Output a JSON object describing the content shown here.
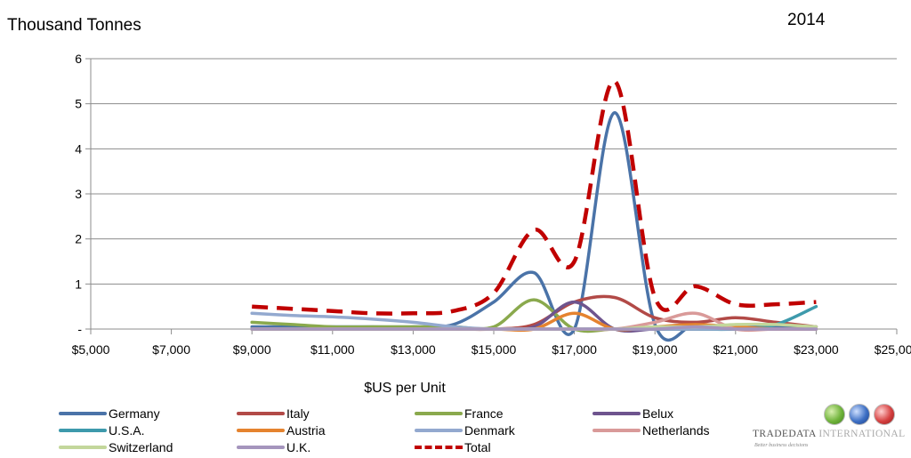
{
  "chart_data": {
    "type": "line",
    "ylabel": "Thousand Tonnes",
    "year_label": "2014",
    "xlabel": "$US per Unit",
    "xlim": [
      5000,
      25000
    ],
    "ylim": [
      0,
      6
    ],
    "x_ticks": [
      5000,
      7000,
      9000,
      11000,
      13000,
      15000,
      17000,
      19000,
      21000,
      23000,
      25000
    ],
    "x_tick_labels": [
      "$5,000",
      "$7,000",
      "$9,000",
      "$11,000",
      "$13,000",
      "$15,000",
      "$17,000",
      "$19,000",
      "$21,000",
      "$23,000",
      "$25,000"
    ],
    "y_ticks": [
      0,
      1,
      2,
      3,
      4,
      5,
      6
    ],
    "y_tick_labels": [
      "-",
      "1",
      "2",
      "3",
      "4",
      "5",
      "6"
    ],
    "grid": "horizontal",
    "legend_position": "bottom",
    "x": [
      9000,
      10000,
      11000,
      12000,
      13000,
      14000,
      15000,
      16000,
      17000,
      18000,
      19000,
      20000,
      21000,
      22000,
      23000
    ],
    "series": [
      {
        "name": "Germany",
        "color": "#4a73a8",
        "dashed": false,
        "values": [
          0.05,
          0.05,
          0.05,
          0.05,
          0.05,
          0.1,
          0.6,
          1.25,
          0,
          4.8,
          0.1,
          0.1,
          0.05,
          0.05,
          0.05
        ]
      },
      {
        "name": "Italy",
        "color": "#b24a47",
        "dashed": false,
        "values": [
          0,
          0,
          0,
          0,
          0,
          0,
          0,
          0.1,
          0.6,
          0.7,
          0.25,
          0.15,
          0.25,
          0.15,
          0.05
        ]
      },
      {
        "name": "France",
        "color": "#8aa94d",
        "dashed": false,
        "values": [
          0.15,
          0.1,
          0.05,
          0.05,
          0.05,
          0.05,
          0.05,
          0.65,
          0,
          0,
          0,
          0,
          0,
          0,
          0
        ]
      },
      {
        "name": "Belux",
        "color": "#6e548e",
        "dashed": false,
        "values": [
          0,
          0,
          0,
          0,
          0,
          0,
          0,
          0.05,
          0.6,
          0,
          0,
          0,
          0,
          0,
          0
        ]
      },
      {
        "name": "U.S.A.",
        "color": "#3e9aac",
        "dashed": false,
        "values": [
          0,
          0,
          0,
          0,
          0,
          0,
          0,
          0,
          0,
          0,
          0,
          0,
          0,
          0.1,
          0.5
        ]
      },
      {
        "name": "Austria",
        "color": "#e5832f",
        "dashed": false,
        "values": [
          0,
          0,
          0,
          0,
          0,
          0,
          0,
          0,
          0.35,
          0,
          0.05,
          0.1,
          0.05,
          0,
          0
        ]
      },
      {
        "name": "Denmark",
        "color": "#93a9cf",
        "dashed": false,
        "values": [
          0.35,
          0.3,
          0.27,
          0.22,
          0.15,
          0.05,
          0,
          0,
          0,
          0,
          0,
          0,
          0,
          0,
          0
        ]
      },
      {
        "name": "Netherlands",
        "color": "#d99a99",
        "dashed": false,
        "values": [
          0,
          0,
          0,
          0,
          0,
          0,
          0,
          0,
          0,
          0,
          0.15,
          0.35,
          0,
          0,
          0
        ]
      },
      {
        "name": "Switzerland",
        "color": "#c3d79b",
        "dashed": false,
        "values": [
          0,
          0,
          0,
          0,
          0,
          0,
          0,
          0,
          0,
          0,
          0.05,
          0.05,
          0.1,
          0.1,
          0.05
        ]
      },
      {
        "name": "U.K.",
        "color": "#a595bd",
        "dashed": false,
        "values": [
          0,
          0,
          0,
          0,
          0,
          0,
          0,
          0,
          0,
          0,
          0,
          0.05,
          0,
          0,
          0
        ]
      },
      {
        "name": "Total",
        "color": "#c00000",
        "dashed": true,
        "values": [
          0.5,
          0.45,
          0.4,
          0.35,
          0.35,
          0.4,
          0.8,
          2.2,
          1.5,
          5.5,
          0.7,
          0.95,
          0.55,
          0.55,
          0.6
        ]
      }
    ]
  },
  "logo": {
    "name_main": "TRADEDATA ",
    "name_intl": "INTERNATIONAL",
    "tagline": "Better business decisions"
  }
}
